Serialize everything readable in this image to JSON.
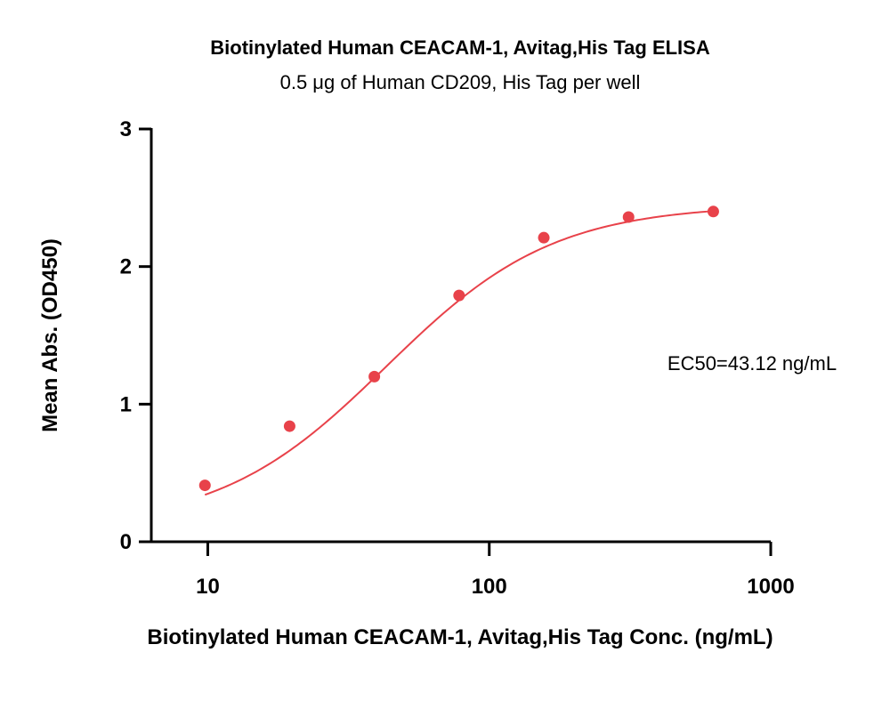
{
  "chart_data": {
    "type": "scatter",
    "title": "Biotinylated Human CEACAM-1, Avitag,His Tag ELISA",
    "subtitle": "0.5 μg of Human CD209, His Tag per well",
    "xlabel": "Biotinylated Human CEACAM-1, Avitag,His Tag Conc. (ng/mL)",
    "ylabel": "Mean Abs. (OD450)",
    "x_scale": "log",
    "xlim": [
      6.3,
      1000
    ],
    "ylim": [
      0,
      3
    ],
    "x_ticks": [
      10,
      100,
      1000
    ],
    "x_tick_labels": [
      "10",
      "100",
      "1000"
    ],
    "y_ticks": [
      0,
      1,
      2,
      3
    ],
    "y_tick_labels": [
      "0",
      "1",
      "2",
      "3"
    ],
    "grid": false,
    "series": [
      {
        "x": [
          9.77,
          19.53,
          39.06,
          78.13,
          156.25,
          312.5,
          625
        ],
        "y": [
          0.41,
          0.84,
          1.2,
          1.79,
          2.21,
          2.36,
          2.4
        ],
        "color": "#e8424a",
        "fit": "4PL sigmoid"
      }
    ],
    "fit_params": {
      "bottom": 0.1,
      "top": 2.45,
      "ec50": 43.12,
      "hill": 1.46
    },
    "annotations": [
      {
        "text": "EC50=43.12 ng/mL"
      }
    ]
  }
}
